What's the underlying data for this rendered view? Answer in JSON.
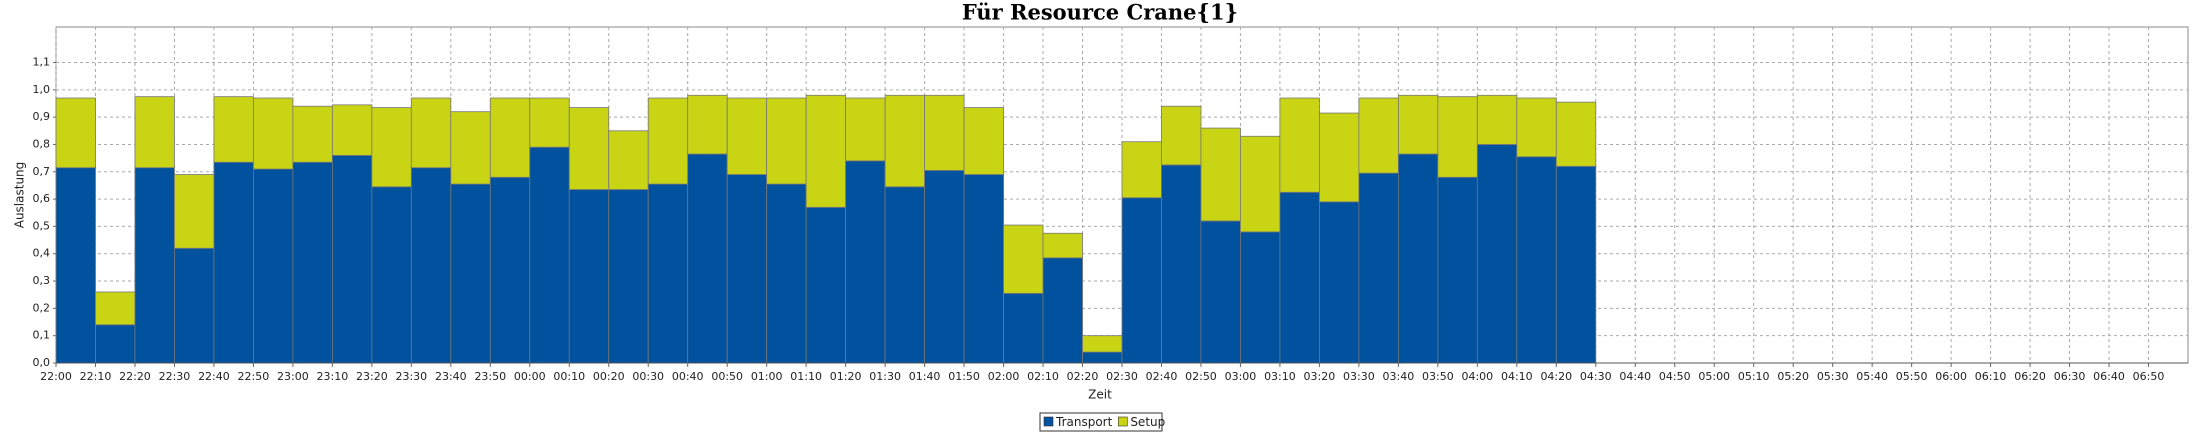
{
  "chart_data": {
    "type": "stacked_bar",
    "title": "Für Resource Crane{1}",
    "x_label": "Zeit",
    "y_label": "Auslastung",
    "categories": [
      "22:00",
      "22:10",
      "22:20",
      "22:30",
      "22:40",
      "22:50",
      "23:00",
      "23:10",
      "23:20",
      "23:30",
      "23:40",
      "23:50",
      "00:00",
      "00:10",
      "00:20",
      "00:30",
      "00:40",
      "00:50",
      "01:00",
      "01:10",
      "01:20",
      "01:30",
      "01:40",
      "01:50",
      "02:00",
      "02:10",
      "02:20",
      "02:30",
      "02:40",
      "02:50",
      "03:00",
      "03:10",
      "03:20",
      "03:30",
      "03:40",
      "03:50",
      "04:00",
      "04:10",
      "04:20",
      "04:30",
      "04:40",
      "04:50",
      "05:00",
      "05:10",
      "05:20",
      "05:30",
      "05:40",
      "05:50",
      "06:00",
      "06:10",
      "06:20",
      "06:30",
      "06:40",
      "06:50"
    ],
    "series": [
      {
        "name": "Transport",
        "color": "#00519e",
        "values": [
          0.715,
          0.14,
          0.715,
          0.42,
          0.735,
          0.71,
          0.735,
          0.76,
          0.645,
          0.715,
          0.655,
          0.68,
          0.79,
          0.635,
          0.635,
          0.655,
          0.765,
          0.69,
          0.655,
          0.57,
          0.74,
          0.645,
          0.705,
          0.69,
          0.255,
          0.385,
          0.04,
          0.605,
          0.725,
          0.52,
          0.48,
          0.625,
          0.59,
          0.695,
          0.765,
          0.68,
          0.8,
          0.755,
          0.72,
          null,
          null,
          null,
          null,
          null,
          null,
          null,
          null,
          null,
          null,
          null,
          null,
          null,
          null,
          null
        ]
      },
      {
        "name": "Setup",
        "color": "#c9d415",
        "values": [
          0.255,
          0.12,
          0.26,
          0.27,
          0.24,
          0.26,
          0.205,
          0.185,
          0.29,
          0.255,
          0.265,
          0.29,
          0.18,
          0.3,
          0.215,
          0.315,
          0.215,
          0.28,
          0.315,
          0.41,
          0.23,
          0.335,
          0.275,
          0.245,
          0.25,
          0.09,
          0.06,
          0.205,
          0.215,
          0.34,
          0.35,
          0.345,
          0.325,
          0.275,
          0.215,
          0.295,
          0.18,
          0.215,
          0.235,
          null,
          null,
          null,
          null,
          null,
          null,
          null,
          null,
          null,
          null,
          null,
          null,
          null,
          null,
          null
        ]
      }
    ],
    "ylim": [
      0,
      1.23
    ],
    "yticks": [
      {
        "value": 0,
        "label": "0,0"
      },
      {
        "value": 0.1,
        "label": "0,1"
      },
      {
        "value": 0.2,
        "label": "0,2"
      },
      {
        "value": 0.3,
        "label": "0,3"
      },
      {
        "value": 0.4,
        "label": "0,4"
      },
      {
        "value": 0.5,
        "label": "0,5"
      },
      {
        "value": 0.6,
        "label": "0,6"
      },
      {
        "value": 0.7,
        "label": "0,7"
      },
      {
        "value": 0.8,
        "label": "0,8"
      },
      {
        "value": 0.9,
        "label": "0,9"
      },
      {
        "value": 1.0,
        "label": "1,0"
      },
      {
        "value": 1.1,
        "label": "1,1"
      }
    ],
    "grid": true,
    "legend": "bottom"
  }
}
